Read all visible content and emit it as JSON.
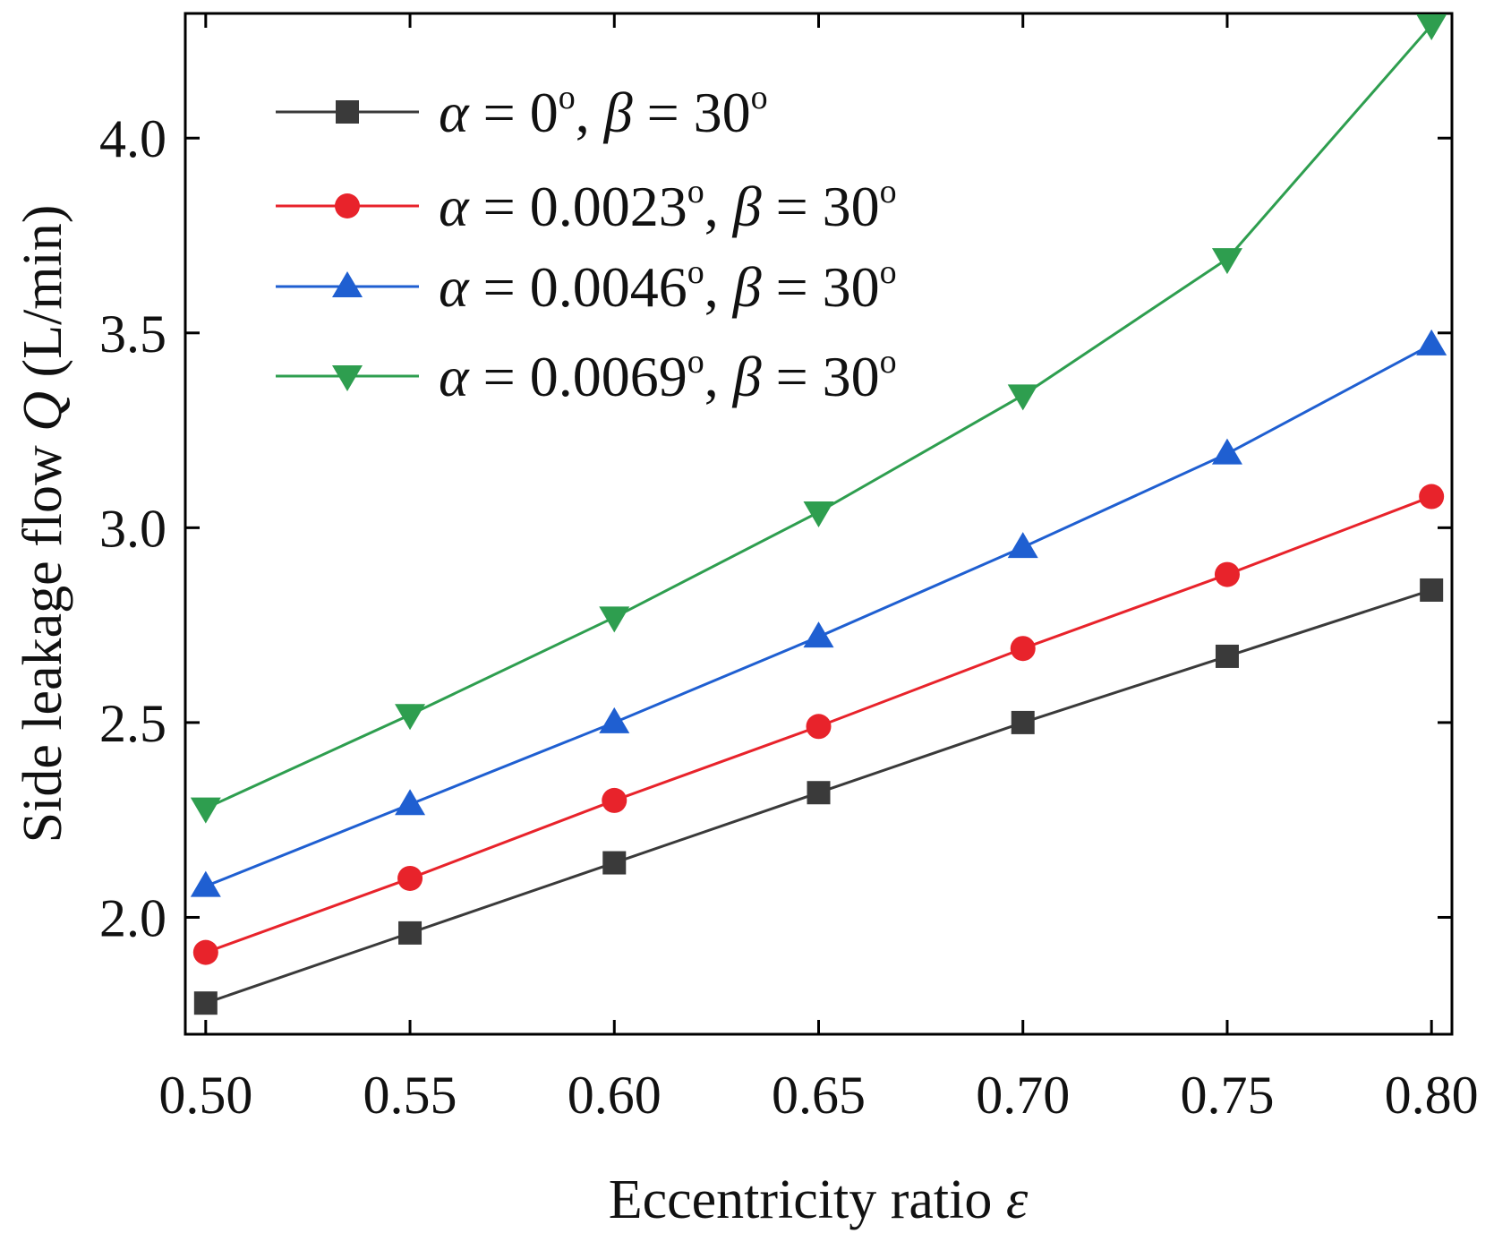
{
  "chart_data": {
    "type": "line",
    "title": "",
    "xlabel": {
      "text": "Eccentricity ratio ",
      "symbol": "ε"
    },
    "ylabel": {
      "text": "Side leakage flow ",
      "symbol": "Q",
      "unit": " (L/min)"
    },
    "xlim": [
      0.495,
      0.805
    ],
    "ylim": [
      1.7,
      4.32
    ],
    "x": [
      0.5,
      0.55,
      0.6,
      0.65,
      0.7,
      0.75,
      0.8
    ],
    "x_ticks": [
      0.5,
      0.55,
      0.6,
      0.65,
      0.7,
      0.75,
      0.8
    ],
    "x_tick_labels": [
      "0.50",
      "0.55",
      "0.60",
      "0.65",
      "0.70",
      "0.75",
      "0.80"
    ],
    "y_ticks": [
      2.0,
      2.5,
      3.0,
      3.5,
      4.0
    ],
    "y_tick_labels": [
      "2.0",
      "2.5",
      "3.0",
      "3.5",
      "4.0"
    ],
    "grid": false,
    "legend_position": "top-left",
    "series": [
      {
        "name": "α = 0°, β = 30°",
        "alpha": "0",
        "beta": "30",
        "color": "#3a3a3a",
        "marker": "square",
        "values": [
          1.78,
          1.96,
          2.14,
          2.32,
          2.5,
          2.67,
          2.84
        ]
      },
      {
        "name": "α = 0.0023°, β = 30°",
        "alpha": "0.0023",
        "beta": "30",
        "color": "#e8232b",
        "marker": "circle",
        "values": [
          1.91,
          2.1,
          2.3,
          2.49,
          2.69,
          2.88,
          3.08
        ]
      },
      {
        "name": "α = 0.0046°, β = 30°",
        "alpha": "0.0046",
        "beta": "30",
        "color": "#1f5fd1",
        "marker": "triangle-up",
        "values": [
          2.08,
          2.29,
          2.5,
          2.72,
          2.95,
          3.19,
          3.47
        ]
      },
      {
        "name": "α = 0.0069°, β = 30°",
        "alpha": "0.0069",
        "beta": "30",
        "color": "#2e9e4f",
        "marker": "triangle-down",
        "values": [
          2.28,
          2.52,
          2.77,
          3.04,
          3.34,
          3.69,
          4.29
        ]
      }
    ]
  }
}
